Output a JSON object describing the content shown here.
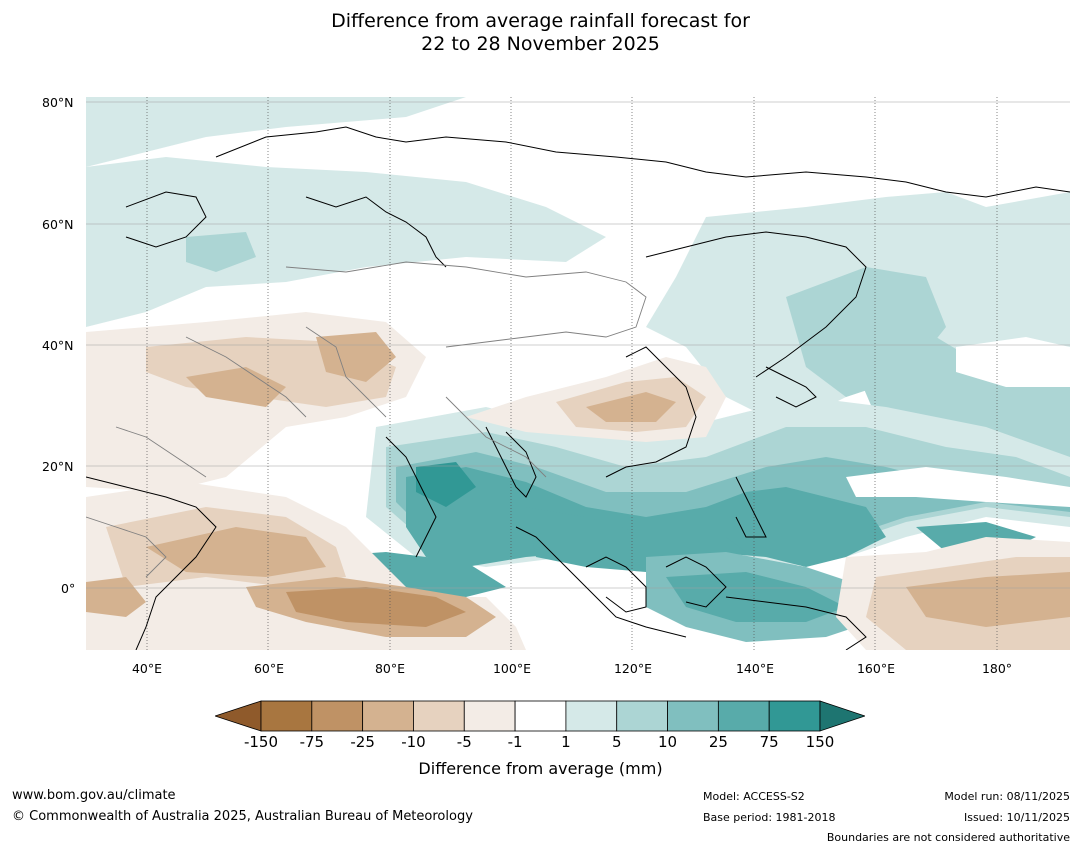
{
  "title": {
    "line1": "Difference from average rainfall forecast for",
    "line2": "22 to 28 November 2025"
  },
  "map": {
    "lat_labels": [
      "80°N",
      "60°N",
      "40°N",
      "20°N",
      "0°"
    ],
    "lon_labels": [
      "40°E",
      "60°E",
      "80°E",
      "100°E",
      "120°E",
      "140°E",
      "160°E",
      "180°"
    ],
    "colors": {
      "below_m150": "#8f5a2b",
      "m150_m75": "#a87640",
      "m75_m25": "#bf9265",
      "m25_m10": "#d4b290",
      "m10_m5": "#e6d2bf",
      "m5_m1": "#f3ece6",
      "m1_p1": "#ffffff",
      "p1_p5": "#d5e9e8",
      "p5_p10": "#acd5d4",
      "p10_p25": "#80bfbf",
      "p25_p75": "#58abaa",
      "p75_p150": "#319895",
      "above_p150": "#1e7571",
      "coast": "#000000",
      "border": "#808080",
      "grid": "#a0a0a0"
    }
  },
  "legend": {
    "ticks": [
      "-150",
      "-75",
      "-25",
      "-10",
      "-5",
      "-1",
      "1",
      "5",
      "10",
      "25",
      "75",
      "150"
    ],
    "title": "Difference from average (mm)"
  },
  "footer": {
    "website": "www.bom.gov.au/climate",
    "copyright": "© Commonwealth of Australia 2025, Australian Bureau of Meteorology",
    "model": "Model: ACCESS-S2",
    "base_period": "Base period: 1981-2018",
    "model_run": "Model run: 08/11/2025",
    "issued": "Issued: 10/11/2025",
    "boundaries_note": "Boundaries are not considered authoritative"
  }
}
